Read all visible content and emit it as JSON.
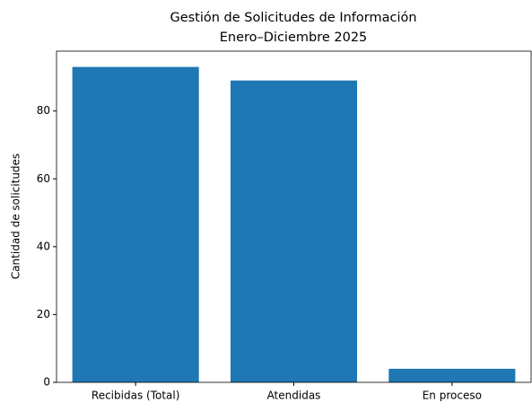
{
  "chart_data": {
    "type": "bar",
    "title": "Gestión de Solicitudes de Información",
    "subtitle": "Enero–Diciembre 2025",
    "ylabel": "Cantidad de solicitudes",
    "categories": [
      "Recibidas (Total)",
      "Atendidas",
      "En proceso"
    ],
    "values": [
      93,
      89,
      4
    ],
    "color": "#1f77b4",
    "ylim": [
      0,
      97.65
    ],
    "yticks": [
      0,
      20,
      40,
      60,
      80
    ],
    "grid": false
  }
}
